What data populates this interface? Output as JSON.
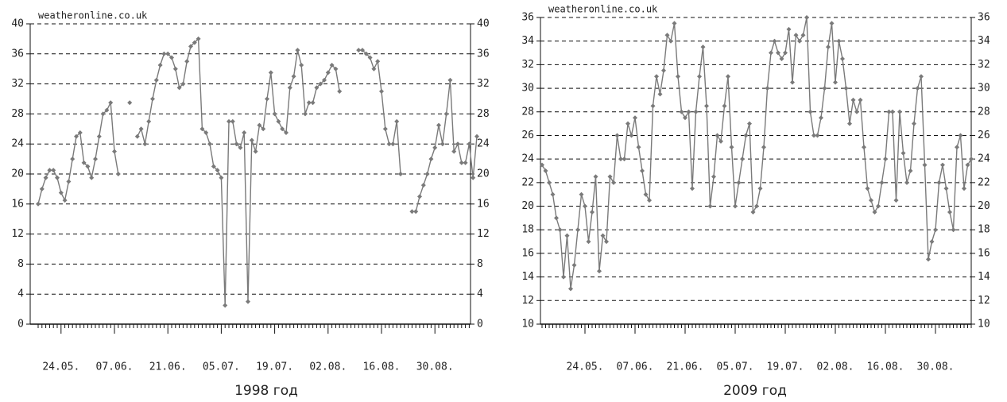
{
  "chart_data": [
    {
      "type": "line",
      "source": "weatheronline.co.uk",
      "caption": "1998 год",
      "ylim": [
        0,
        40
      ],
      "yticks": [
        0,
        4,
        8,
        12,
        16,
        20,
        24,
        28,
        32,
        36,
        40
      ],
      "grid": true,
      "categories": [
        null,
        null,
        null,
        null,
        null,
        null,
        "24.05.",
        null,
        null,
        null,
        null,
        null,
        null,
        null,
        null,
        null,
        null,
        null,
        null,
        null,
        "07.06.",
        null,
        null,
        null,
        null,
        null,
        null,
        null,
        null,
        null,
        null,
        null,
        null,
        null,
        "21.06.",
        null,
        null,
        null,
        null,
        null,
        null,
        null,
        null,
        null,
        null,
        null,
        null,
        null,
        "05.07.",
        null,
        null,
        null,
        null,
        null,
        null,
        null,
        null,
        null,
        null,
        null,
        null,
        null,
        "19.07.",
        null,
        null,
        null,
        null,
        null,
        null,
        null,
        null,
        null,
        null,
        null,
        null,
        null,
        "02.08.",
        null,
        null,
        null,
        null,
        null,
        null,
        null,
        null,
        null,
        null,
        null,
        null,
        null,
        "16.08.",
        null,
        null,
        null,
        null,
        null,
        null,
        null,
        null,
        null,
        null,
        null,
        null,
        null,
        "30.08.",
        null,
        null,
        null,
        null,
        null,
        null,
        null,
        null,
        null,
        null,
        null
      ],
      "series": [
        {
          "color": "#7a7a7a",
          "values": [
            16,
            18,
            19.5,
            20.5,
            20.5,
            19.5,
            17.5,
            16.5,
            19,
            22,
            25,
            25.5,
            21.5,
            21,
            19.5,
            22,
            25,
            28,
            28.5,
            29.5,
            23,
            20,
            null,
            null,
            29.5,
            null,
            25,
            26,
            24,
            27,
            30,
            32.5,
            34.5,
            36,
            36,
            35.5,
            34,
            31.5,
            32,
            35,
            37,
            37.5,
            38,
            26,
            25.5,
            24,
            21,
            20.5,
            19.5,
            2.5,
            27,
            27,
            24,
            23.5,
            25.5,
            3,
            24.5,
            23,
            26.5,
            26,
            30,
            33.5,
            28,
            27,
            26,
            25.5,
            31.5,
            33,
            36.5,
            34.5,
            28,
            29.5,
            29.5,
            31.5,
            32,
            32.5,
            33.5,
            34.5,
            34,
            31,
            null,
            null,
            null,
            null,
            36.5,
            36.5,
            36,
            35.5,
            34,
            35,
            31,
            26,
            24,
            24,
            27,
            20,
            null,
            null,
            15,
            15,
            17,
            18.5,
            20,
            22,
            23.5,
            26.5,
            24,
            28,
            32.5,
            23,
            24,
            21.5,
            21.5,
            24,
            19.5,
            25
          ]
        }
      ]
    },
    {
      "type": "line",
      "source": "weatheronline.co.uk",
      "caption": "2009 год",
      "ylim": [
        10,
        36
      ],
      "yticks": [
        10,
        12,
        14,
        16,
        18,
        20,
        22,
        24,
        26,
        28,
        30,
        32,
        34,
        36
      ],
      "grid": true,
      "categories": [
        null,
        null,
        null,
        null,
        null,
        null,
        null,
        null,
        null,
        null,
        null,
        null,
        "24.05.",
        null,
        null,
        null,
        null,
        null,
        null,
        null,
        null,
        null,
        null,
        null,
        null,
        null,
        "07.06.",
        null,
        null,
        null,
        null,
        null,
        null,
        null,
        null,
        null,
        null,
        null,
        null,
        null,
        "21.06.",
        null,
        null,
        null,
        null,
        null,
        null,
        null,
        null,
        null,
        null,
        null,
        null,
        null,
        "05.07.",
        null,
        null,
        null,
        null,
        null,
        null,
        null,
        null,
        null,
        null,
        null,
        null,
        null,
        "19.07.",
        null,
        null,
        null,
        null,
        null,
        null,
        null,
        null,
        null,
        null,
        null,
        null,
        null,
        "02.08.",
        null,
        null,
        null,
        null,
        null,
        null,
        null,
        null,
        null,
        null,
        null,
        null,
        null,
        "16.08.",
        null,
        null,
        null,
        null,
        null,
        null,
        null,
        null,
        null,
        null,
        null,
        null,
        null,
        "30.08.",
        null,
        null,
        null,
        null,
        null,
        null,
        null,
        null,
        null,
        null
      ],
      "series": [
        {
          "color": "#7a7a7a",
          "values": [
            23.5,
            23,
            22,
            21,
            19,
            18,
            14,
            17.5,
            13,
            15,
            18,
            21,
            20,
            17,
            19.5,
            22.5,
            14.5,
            17.5,
            17,
            22.5,
            22,
            26,
            24,
            24,
            27,
            26,
            27.5,
            25,
            23,
            21,
            20.5,
            28.5,
            31,
            29.5,
            31.5,
            34.5,
            34,
            35.5,
            31,
            28,
            27.5,
            28,
            21.5,
            28,
            31,
            33.5,
            28.5,
            20,
            22.5,
            26,
            25.5,
            28.5,
            31,
            25,
            20,
            22,
            24,
            26,
            27,
            19.5,
            20,
            21.5,
            25,
            30,
            33,
            34,
            33,
            32.5,
            33,
            35,
            30.5,
            34.5,
            34,
            34.5,
            36,
            28,
            26,
            26,
            27.5,
            30,
            33.5,
            35.5,
            30.5,
            34,
            32.5,
            30,
            27,
            29,
            28,
            29,
            25,
            21.5,
            20.5,
            19.5,
            20,
            22,
            24,
            28,
            28,
            20.5,
            28,
            24.5,
            22,
            23,
            27,
            30,
            31,
            23.5,
            15.5,
            17,
            18,
            22,
            23.5,
            21.5,
            19.5,
            18,
            25,
            26,
            21.5,
            23.5,
            24
          ]
        }
      ]
    }
  ]
}
